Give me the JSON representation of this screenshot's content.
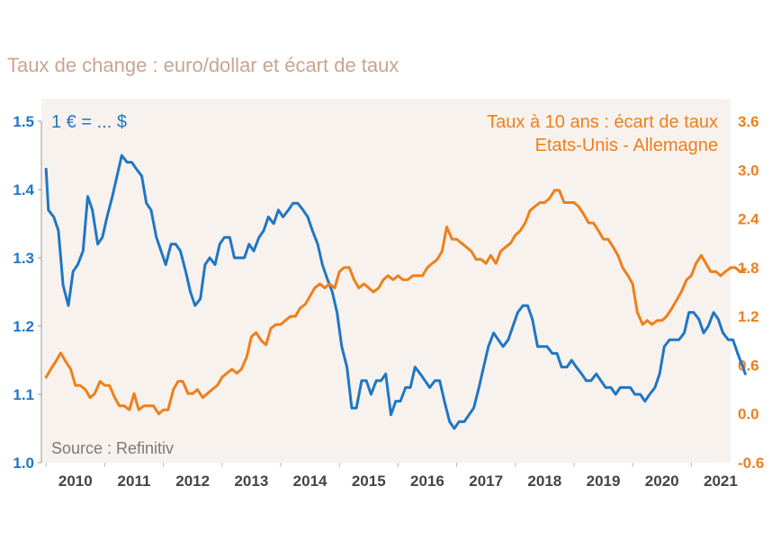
{
  "title": "Taux de change : euro/dollar et écart de taux",
  "colors": {
    "left": "#1f77c4",
    "right": "#ef7f1a",
    "panel": "#f8f2ee",
    "axis_text": "#444444"
  },
  "chart_data": {
    "type": "line",
    "left_axis_label": "1 € = ... $",
    "right_axis_label_lines": [
      "Taux à 10 ans : écart de taux",
      "Etats-Unis - Allemagne"
    ],
    "source": "Source :  Refinitiv",
    "x_tick_labels": [
      "2010",
      "2011",
      "2012",
      "2013",
      "2014",
      "2015",
      "2016",
      "2017",
      "2018",
      "2019",
      "2020",
      "2021"
    ],
    "x_range": [
      2009.92,
      2021.67
    ],
    "y_left": {
      "range": [
        1.0,
        1.5
      ],
      "ticks": [
        "1.0",
        "1.1",
        "1.2",
        "1.3",
        "1.4",
        "1.5"
      ]
    },
    "y_right": {
      "range": [
        -0.6,
        3.6
      ],
      "ticks": [
        "-0.6",
        "0.0",
        "0.6",
        "1.2",
        "1.8",
        "2.4",
        "3.0",
        "3.6"
      ]
    },
    "series": [
      {
        "name": "1 € = ... $",
        "axis": "left",
        "points": [
          [
            2010.0,
            1.43
          ],
          [
            2010.04,
            1.37
          ],
          [
            2010.13,
            1.36
          ],
          [
            2010.21,
            1.34
          ],
          [
            2010.29,
            1.26
          ],
          [
            2010.38,
            1.23
          ],
          [
            2010.46,
            1.28
          ],
          [
            2010.54,
            1.29
          ],
          [
            2010.63,
            1.31
          ],
          [
            2010.71,
            1.39
          ],
          [
            2010.79,
            1.37
          ],
          [
            2010.88,
            1.32
          ],
          [
            2010.96,
            1.33
          ],
          [
            2011.04,
            1.36
          ],
          [
            2011.13,
            1.39
          ],
          [
            2011.21,
            1.42
          ],
          [
            2011.29,
            1.45
          ],
          [
            2011.38,
            1.44
          ],
          [
            2011.46,
            1.44
          ],
          [
            2011.54,
            1.43
          ],
          [
            2011.63,
            1.42
          ],
          [
            2011.71,
            1.38
          ],
          [
            2011.79,
            1.37
          ],
          [
            2011.88,
            1.33
          ],
          [
            2011.96,
            1.31
          ],
          [
            2012.04,
            1.29
          ],
          [
            2012.13,
            1.32
          ],
          [
            2012.21,
            1.32
          ],
          [
            2012.29,
            1.31
          ],
          [
            2012.38,
            1.28
          ],
          [
            2012.46,
            1.25
          ],
          [
            2012.54,
            1.23
          ],
          [
            2012.63,
            1.24
          ],
          [
            2012.71,
            1.29
          ],
          [
            2012.79,
            1.3
          ],
          [
            2012.88,
            1.29
          ],
          [
            2012.96,
            1.32
          ],
          [
            2013.04,
            1.33
          ],
          [
            2013.13,
            1.33
          ],
          [
            2013.21,
            1.3
          ],
          [
            2013.29,
            1.3
          ],
          [
            2013.38,
            1.3
          ],
          [
            2013.46,
            1.32
          ],
          [
            2013.54,
            1.31
          ],
          [
            2013.63,
            1.33
          ],
          [
            2013.71,
            1.34
          ],
          [
            2013.79,
            1.36
          ],
          [
            2013.88,
            1.35
          ],
          [
            2013.96,
            1.37
          ],
          [
            2014.04,
            1.36
          ],
          [
            2014.13,
            1.37
          ],
          [
            2014.21,
            1.38
          ],
          [
            2014.29,
            1.38
          ],
          [
            2014.38,
            1.37
          ],
          [
            2014.46,
            1.36
          ],
          [
            2014.54,
            1.34
          ],
          [
            2014.63,
            1.32
          ],
          [
            2014.71,
            1.29
          ],
          [
            2014.79,
            1.27
          ],
          [
            2014.88,
            1.25
          ],
          [
            2014.96,
            1.22
          ],
          [
            2015.04,
            1.17
          ],
          [
            2015.13,
            1.14
          ],
          [
            2015.21,
            1.08
          ],
          [
            2015.29,
            1.08
          ],
          [
            2015.38,
            1.12
          ],
          [
            2015.46,
            1.12
          ],
          [
            2015.54,
            1.1
          ],
          [
            2015.63,
            1.12
          ],
          [
            2015.71,
            1.12
          ],
          [
            2015.79,
            1.13
          ],
          [
            2015.88,
            1.07
          ],
          [
            2015.96,
            1.09
          ],
          [
            2016.04,
            1.09
          ],
          [
            2016.13,
            1.11
          ],
          [
            2016.21,
            1.11
          ],
          [
            2016.29,
            1.14
          ],
          [
            2016.38,
            1.13
          ],
          [
            2016.46,
            1.12
          ],
          [
            2016.54,
            1.11
          ],
          [
            2016.63,
            1.12
          ],
          [
            2016.71,
            1.12
          ],
          [
            2016.79,
            1.09
          ],
          [
            2016.88,
            1.06
          ],
          [
            2016.96,
            1.05
          ],
          [
            2017.04,
            1.06
          ],
          [
            2017.13,
            1.06
          ],
          [
            2017.21,
            1.07
          ],
          [
            2017.29,
            1.08
          ],
          [
            2017.38,
            1.11
          ],
          [
            2017.46,
            1.14
          ],
          [
            2017.54,
            1.17
          ],
          [
            2017.63,
            1.19
          ],
          [
            2017.71,
            1.18
          ],
          [
            2017.79,
            1.17
          ],
          [
            2017.88,
            1.18
          ],
          [
            2017.96,
            1.2
          ],
          [
            2018.04,
            1.22
          ],
          [
            2018.13,
            1.23
          ],
          [
            2018.21,
            1.23
          ],
          [
            2018.29,
            1.21
          ],
          [
            2018.38,
            1.17
          ],
          [
            2018.46,
            1.17
          ],
          [
            2018.54,
            1.17
          ],
          [
            2018.63,
            1.16
          ],
          [
            2018.71,
            1.16
          ],
          [
            2018.79,
            1.14
          ],
          [
            2018.88,
            1.14
          ],
          [
            2018.96,
            1.15
          ],
          [
            2019.04,
            1.14
          ],
          [
            2019.13,
            1.13
          ],
          [
            2019.21,
            1.12
          ],
          [
            2019.29,
            1.12
          ],
          [
            2019.38,
            1.13
          ],
          [
            2019.46,
            1.12
          ],
          [
            2019.54,
            1.11
          ],
          [
            2019.63,
            1.11
          ],
          [
            2019.71,
            1.1
          ],
          [
            2019.79,
            1.11
          ],
          [
            2019.88,
            1.11
          ],
          [
            2019.96,
            1.11
          ],
          [
            2020.04,
            1.1
          ],
          [
            2020.13,
            1.1
          ],
          [
            2020.21,
            1.09
          ],
          [
            2020.29,
            1.1
          ],
          [
            2020.38,
            1.11
          ],
          [
            2020.46,
            1.13
          ],
          [
            2020.54,
            1.17
          ],
          [
            2020.63,
            1.18
          ],
          [
            2020.71,
            1.18
          ],
          [
            2020.79,
            1.18
          ],
          [
            2020.88,
            1.19
          ],
          [
            2020.96,
            1.22
          ],
          [
            2021.04,
            1.22
          ],
          [
            2021.13,
            1.21
          ],
          [
            2021.21,
            1.19
          ],
          [
            2021.29,
            1.2
          ],
          [
            2021.38,
            1.22
          ],
          [
            2021.46,
            1.21
          ],
          [
            2021.54,
            1.19
          ],
          [
            2021.63,
            1.18
          ],
          [
            2021.71,
            1.18
          ],
          [
            2021.79,
            1.16
          ],
          [
            2021.88,
            1.14
          ],
          [
            2021.92,
            1.13
          ]
        ]
      },
      {
        "name": "Taux à 10 ans : écart de taux Etats-Unis - Allemagne",
        "axis": "right",
        "points": [
          [
            2010.0,
            0.45
          ],
          [
            2010.08,
            0.55
          ],
          [
            2010.17,
            0.65
          ],
          [
            2010.25,
            0.75
          ],
          [
            2010.33,
            0.65
          ],
          [
            2010.42,
            0.55
          ],
          [
            2010.5,
            0.35
          ],
          [
            2010.58,
            0.35
          ],
          [
            2010.67,
            0.3
          ],
          [
            2010.75,
            0.2
          ],
          [
            2010.83,
            0.25
          ],
          [
            2010.92,
            0.4
          ],
          [
            2011.0,
            0.35
          ],
          [
            2011.08,
            0.35
          ],
          [
            2011.17,
            0.2
          ],
          [
            2011.25,
            0.1
          ],
          [
            2011.33,
            0.1
          ],
          [
            2011.42,
            0.05
          ],
          [
            2011.5,
            0.25
          ],
          [
            2011.58,
            0.05
          ],
          [
            2011.67,
            0.1
          ],
          [
            2011.75,
            0.1
          ],
          [
            2011.83,
            0.1
          ],
          [
            2011.92,
            0.0
          ],
          [
            2012.0,
            0.05
          ],
          [
            2012.08,
            0.05
          ],
          [
            2012.17,
            0.3
          ],
          [
            2012.25,
            0.4
          ],
          [
            2012.33,
            0.4
          ],
          [
            2012.42,
            0.25
          ],
          [
            2012.5,
            0.25
          ],
          [
            2012.58,
            0.3
          ],
          [
            2012.67,
            0.2
          ],
          [
            2012.75,
            0.25
          ],
          [
            2012.83,
            0.3
          ],
          [
            2012.92,
            0.35
          ],
          [
            2013.0,
            0.45
          ],
          [
            2013.08,
            0.5
          ],
          [
            2013.17,
            0.55
          ],
          [
            2013.25,
            0.5
          ],
          [
            2013.33,
            0.55
          ],
          [
            2013.42,
            0.7
          ],
          [
            2013.5,
            0.95
          ],
          [
            2013.58,
            1.0
          ],
          [
            2013.67,
            0.9
          ],
          [
            2013.75,
            0.85
          ],
          [
            2013.83,
            1.05
          ],
          [
            2013.92,
            1.1
          ],
          [
            2014.0,
            1.1
          ],
          [
            2014.08,
            1.15
          ],
          [
            2014.17,
            1.2
          ],
          [
            2014.25,
            1.2
          ],
          [
            2014.33,
            1.3
          ],
          [
            2014.42,
            1.35
          ],
          [
            2014.5,
            1.45
          ],
          [
            2014.58,
            1.55
          ],
          [
            2014.67,
            1.6
          ],
          [
            2014.75,
            1.55
          ],
          [
            2014.83,
            1.6
          ],
          [
            2014.92,
            1.55
          ],
          [
            2015.0,
            1.75
          ],
          [
            2015.08,
            1.8
          ],
          [
            2015.17,
            1.8
          ],
          [
            2015.25,
            1.65
          ],
          [
            2015.33,
            1.55
          ],
          [
            2015.42,
            1.6
          ],
          [
            2015.5,
            1.55
          ],
          [
            2015.58,
            1.5
          ],
          [
            2015.67,
            1.55
          ],
          [
            2015.75,
            1.65
          ],
          [
            2015.83,
            1.7
          ],
          [
            2015.92,
            1.65
          ],
          [
            2016.0,
            1.7
          ],
          [
            2016.08,
            1.65
          ],
          [
            2016.17,
            1.65
          ],
          [
            2016.25,
            1.7
          ],
          [
            2016.33,
            1.7
          ],
          [
            2016.42,
            1.7
          ],
          [
            2016.5,
            1.8
          ],
          [
            2016.58,
            1.85
          ],
          [
            2016.67,
            1.9
          ],
          [
            2016.75,
            2.0
          ],
          [
            2016.83,
            2.3
          ],
          [
            2016.92,
            2.15
          ],
          [
            2017.0,
            2.15
          ],
          [
            2017.08,
            2.1
          ],
          [
            2017.17,
            2.05
          ],
          [
            2017.25,
            2.0
          ],
          [
            2017.33,
            1.9
          ],
          [
            2017.42,
            1.9
          ],
          [
            2017.5,
            1.85
          ],
          [
            2017.58,
            1.95
          ],
          [
            2017.67,
            1.85
          ],
          [
            2017.75,
            2.0
          ],
          [
            2017.83,
            2.05
          ],
          [
            2017.92,
            2.1
          ],
          [
            2018.0,
            2.2
          ],
          [
            2018.08,
            2.25
          ],
          [
            2018.17,
            2.35
          ],
          [
            2018.25,
            2.5
          ],
          [
            2018.33,
            2.55
          ],
          [
            2018.42,
            2.6
          ],
          [
            2018.5,
            2.6
          ],
          [
            2018.58,
            2.65
          ],
          [
            2018.67,
            2.75
          ],
          [
            2018.75,
            2.75
          ],
          [
            2018.83,
            2.6
          ],
          [
            2018.92,
            2.6
          ],
          [
            2019.0,
            2.6
          ],
          [
            2019.08,
            2.55
          ],
          [
            2019.17,
            2.45
          ],
          [
            2019.25,
            2.35
          ],
          [
            2019.33,
            2.35
          ],
          [
            2019.42,
            2.25
          ],
          [
            2019.5,
            2.15
          ],
          [
            2019.58,
            2.15
          ],
          [
            2019.67,
            2.05
          ],
          [
            2019.75,
            1.95
          ],
          [
            2019.83,
            1.8
          ],
          [
            2019.92,
            1.7
          ],
          [
            2020.0,
            1.6
          ],
          [
            2020.08,
            1.25
          ],
          [
            2020.17,
            1.1
          ],
          [
            2020.25,
            1.15
          ],
          [
            2020.33,
            1.1
          ],
          [
            2020.42,
            1.15
          ],
          [
            2020.5,
            1.15
          ],
          [
            2020.58,
            1.2
          ],
          [
            2020.67,
            1.3
          ],
          [
            2020.75,
            1.4
          ],
          [
            2020.83,
            1.5
          ],
          [
            2020.92,
            1.65
          ],
          [
            2021.0,
            1.7
          ],
          [
            2021.08,
            1.85
          ],
          [
            2021.17,
            1.95
          ],
          [
            2021.25,
            1.85
          ],
          [
            2021.33,
            1.75
          ],
          [
            2021.42,
            1.75
          ],
          [
            2021.5,
            1.7
          ],
          [
            2021.58,
            1.75
          ],
          [
            2021.67,
            1.8
          ],
          [
            2021.75,
            1.8
          ],
          [
            2021.83,
            1.75
          ],
          [
            2021.92,
            1.78
          ]
        ]
      }
    ]
  }
}
